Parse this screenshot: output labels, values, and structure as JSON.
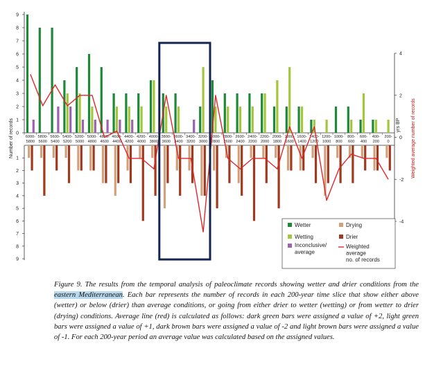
{
  "chart_data": {
    "type": "bar",
    "categories": [
      [
        "6000-",
        "5800"
      ],
      [
        "5800-",
        "5600"
      ],
      [
        "5600-",
        "5400"
      ],
      [
        "5400-",
        "5200"
      ],
      [
        "5200-",
        "5000"
      ],
      [
        "5000-",
        "4800"
      ],
      [
        "4800-",
        "4600"
      ],
      [
        "4600-",
        "4400"
      ],
      [
        "4400-",
        "4200"
      ],
      [
        "4200-",
        "4000"
      ],
      [
        "4000-",
        "3800"
      ],
      [
        "3800-",
        "3600"
      ],
      [
        "3600-",
        "3400"
      ],
      [
        "3400-",
        "3200"
      ],
      [
        "3200-",
        "3000"
      ],
      [
        "3000-",
        "2800"
      ],
      [
        "2800-",
        "2600"
      ],
      [
        "2600-",
        "2400"
      ],
      [
        "2400-",
        "2200"
      ],
      [
        "2200-",
        "2000"
      ],
      [
        "2000-",
        "1800"
      ],
      [
        "1800-",
        "1600"
      ],
      [
        "1600-",
        "1400"
      ],
      [
        "1400-",
        "1200"
      ],
      [
        "1200-",
        "1000"
      ],
      [
        "1000-",
        "800"
      ],
      [
        "800-",
        "600"
      ],
      [
        "600-",
        "400"
      ],
      [
        "400-",
        "200"
      ],
      [
        "200-",
        "0"
      ]
    ],
    "series": [
      {
        "name": "Wetter",
        "color": "#1e8a38",
        "direction": "up",
        "values": [
          9,
          8,
          8,
          4,
          5,
          6,
          5,
          3,
          3,
          3,
          4,
          3,
          3,
          0,
          2,
          4,
          3,
          3,
          3,
          3,
          2,
          2,
          2,
          1,
          0,
          2,
          2,
          1,
          1,
          0
        ]
      },
      {
        "name": "Wetting",
        "color": "#a4c63a",
        "direction": "up",
        "values": [
          0,
          0,
          0,
          3,
          3,
          2,
          0,
          2,
          2,
          2,
          4,
          2,
          2,
          0,
          5,
          2,
          2,
          2,
          2,
          3,
          4,
          5,
          2,
          1,
          1,
          0,
          1,
          3,
          1,
          1
        ]
      },
      {
        "name": "Inconclusive/ average",
        "color": "#9b62b0",
        "direction": "up",
        "values": [
          1,
          0,
          2,
          2,
          1,
          1,
          1,
          1,
          1,
          0,
          0,
          0,
          0,
          1,
          0,
          0,
          0,
          0,
          0,
          0,
          0,
          0,
          0,
          0,
          0,
          0,
          0,
          0,
          0,
          0
        ]
      },
      {
        "name": "Drying",
        "color": "#d2a07a",
        "direction": "down",
        "values": [
          1,
          1,
          1,
          1,
          2,
          2,
          3,
          4,
          2,
          1,
          1,
          5,
          2,
          2,
          4,
          2,
          1,
          3,
          1,
          1,
          1,
          2,
          2,
          1,
          4,
          1,
          1,
          1,
          2,
          1
        ]
      },
      {
        "name": "Drier",
        "color": "#a0391e",
        "direction": "down",
        "values": [
          2,
          4,
          2,
          3,
          2,
          2,
          3,
          3,
          3,
          6,
          4,
          3,
          4,
          3,
          4,
          5,
          3,
          4,
          6,
          3,
          5,
          2,
          2,
          3,
          3,
          3,
          3,
          2,
          2,
          2
        ]
      }
    ],
    "weighted_average": {
      "name": "Weighted average no. of records",
      "color": "#e0262a",
      "values": [
        3,
        1.5,
        2.5,
        1.5,
        2,
        2,
        0,
        0.3,
        -1,
        -1,
        -1.5,
        2,
        -1,
        -1,
        -4.5,
        2,
        -1,
        -1.5,
        -1,
        -1,
        -1.5,
        0.5,
        -1,
        0.5,
        -3,
        -1.5,
        -0.8,
        -1,
        -1,
        -2
      ]
    },
    "left_axis": {
      "label": "Number of records",
      "ticks_upper": [
        "0",
        "1",
        "2",
        "3",
        "4",
        "5",
        "6",
        "7",
        "8",
        "9"
      ],
      "ticks_lower": [
        "1",
        "2",
        "3",
        "4",
        "5",
        "6",
        "7",
        "8",
        "9"
      ],
      "upper_range": [
        0,
        9
      ],
      "lower_range": [
        0,
        9
      ]
    },
    "right_axis": {
      "label": "Weighted average number of records",
      "ticks": [
        "4",
        "2",
        "0",
        "-2",
        "-4"
      ],
      "range": [
        -4,
        4
      ]
    },
    "x_label": "yrs BP",
    "legend_placement": "bottom-right",
    "highlight_box_range": [
      "3800-3600",
      "3200-3000"
    ]
  },
  "caption": {
    "part1": "Figure 9. The results from the temporal analysis of paleoclimate records showing wetter and drier conditions from the ",
    "highlight": "eastern Mediterranean",
    "part2": ". Each bar represents the number of records in each 200-year time slice that show either above (wetter) or below (drier) than average conditions, or going from either drier to wetter (wetting) or from wetter to drier (drying) conditions. Average line (red) is calculated as follows: dark green bars were assigned a value of +2, light green bars were assigned a value of +1, dark brown bars were assigned a value of -2 and light brown bars were assigned a value of -1. For each 200-year period an average value was calculated based on the assigned values."
  }
}
